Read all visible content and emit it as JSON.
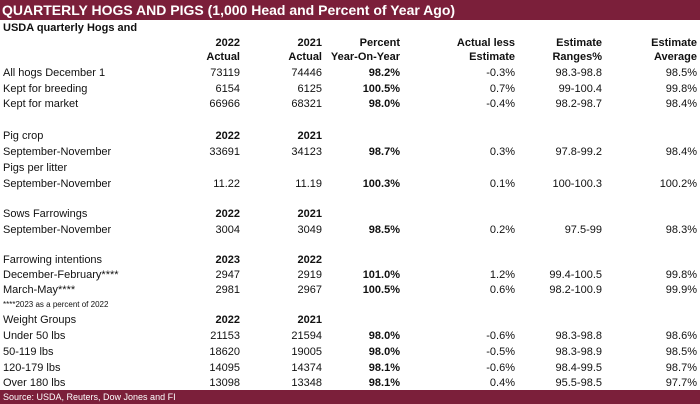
{
  "title": "QUARTERLY HOGS AND PIGS (1,000 Head and Percent of Year Ago)",
  "subtitle": "USDA quarterly Hogs and",
  "header": {
    "c1": [
      "2022",
      "Actual"
    ],
    "c2": [
      "2021",
      "Actual"
    ],
    "c3": [
      "Percent",
      "Year-On-Year"
    ],
    "c4": [
      "Actual less",
      "Estimate"
    ],
    "c5": [
      "Estimate",
      "Ranges%"
    ],
    "c6": [
      "Estimate",
      "Average"
    ]
  },
  "rows": [
    {
      "label": "All hogs December 1",
      "c1": "73119",
      "c2": "74446",
      "c3": "98.2%",
      "c4": "-0.3%",
      "c5": "98.3-98.8",
      "c6": "98.5%"
    },
    {
      "label": "Kept for breeding",
      "c1": "6154",
      "c2": "6125",
      "c3": "100.5%",
      "c4": "0.7%",
      "c5": "99-100.4",
      "c6": "99.8%"
    },
    {
      "label": "Kept for market",
      "c1": "66966",
      "c2": "68321",
      "c3": "98.0%",
      "c4": "-0.4%",
      "c5": "98.2-98.7",
      "c6": "98.4%"
    },
    {
      "label": "Pig crop",
      "c1": "2022",
      "c2": "2021",
      "bold": true
    },
    {
      "label": "September-November",
      "c1": "33691",
      "c2": "34123",
      "c3": "98.7%",
      "c4": "0.3%",
      "c5": "97.8-99.2",
      "c6": "98.4%"
    },
    {
      "label": "Pigs per litter"
    },
    {
      "label": "September-November",
      "c1": "11.22",
      "c2": "11.19",
      "c3": "100.3%",
      "c4": "0.1%",
      "c5": "100-100.3",
      "c6": "100.2%"
    },
    {
      "label": "Sows Farrowings",
      "c1": "2022",
      "c2": "2021",
      "bold": true
    },
    {
      "label": "September-November",
      "c1": "3004",
      "c2": "3049",
      "c3": "98.5%",
      "c4": "0.2%",
      "c5": "97.5-99",
      "c6": "98.3%"
    },
    {
      "label": "Farrowing intentions",
      "c1": "2023",
      "c2": "2022",
      "bold": true
    },
    {
      "label": "December-February****",
      "c1": "2947",
      "c2": "2919",
      "c3": "101.0%",
      "c4": "1.2%",
      "c5": "99.4-100.5",
      "c6": "99.8%"
    },
    {
      "label": "March-May****",
      "c1": "2981",
      "c2": "2967",
      "c3": "100.5%",
      "c4": "0.6%",
      "c5": "98.2-100.9",
      "c6": "99.9%"
    },
    {
      "label": "****2023 as a percent of 2022",
      "note": true
    },
    {
      "label": "Weight Groups",
      "c1": "2022",
      "c2": "2021",
      "bold": true
    },
    {
      "label": "Under 50 lbs",
      "c1": "21153",
      "c2": "21594",
      "c3": "98.0%",
      "c4": "-0.6%",
      "c5": "98.3-98.8",
      "c6": "98.6%"
    },
    {
      "label": "50-119 lbs",
      "c1": "18620",
      "c2": "19005",
      "c3": "98.0%",
      "c4": "-0.5%",
      "c5": "98.3-98.9",
      "c6": "98.5%"
    },
    {
      "label": "120-179 lbs",
      "c1": "14095",
      "c2": "14374",
      "c3": "98.1%",
      "c4": "-0.6%",
      "c5": "98.4-99.5",
      "c6": "98.7%"
    },
    {
      "label": "Over 180 lbs",
      "c1": "13098",
      "c2": "13348",
      "c3": "98.1%",
      "c4": "0.4%",
      "c5": "95.5-98.5",
      "c6": "97.7%"
    }
  ],
  "footer": "Source: USDA, Reuters, Dow Jones and FI"
}
